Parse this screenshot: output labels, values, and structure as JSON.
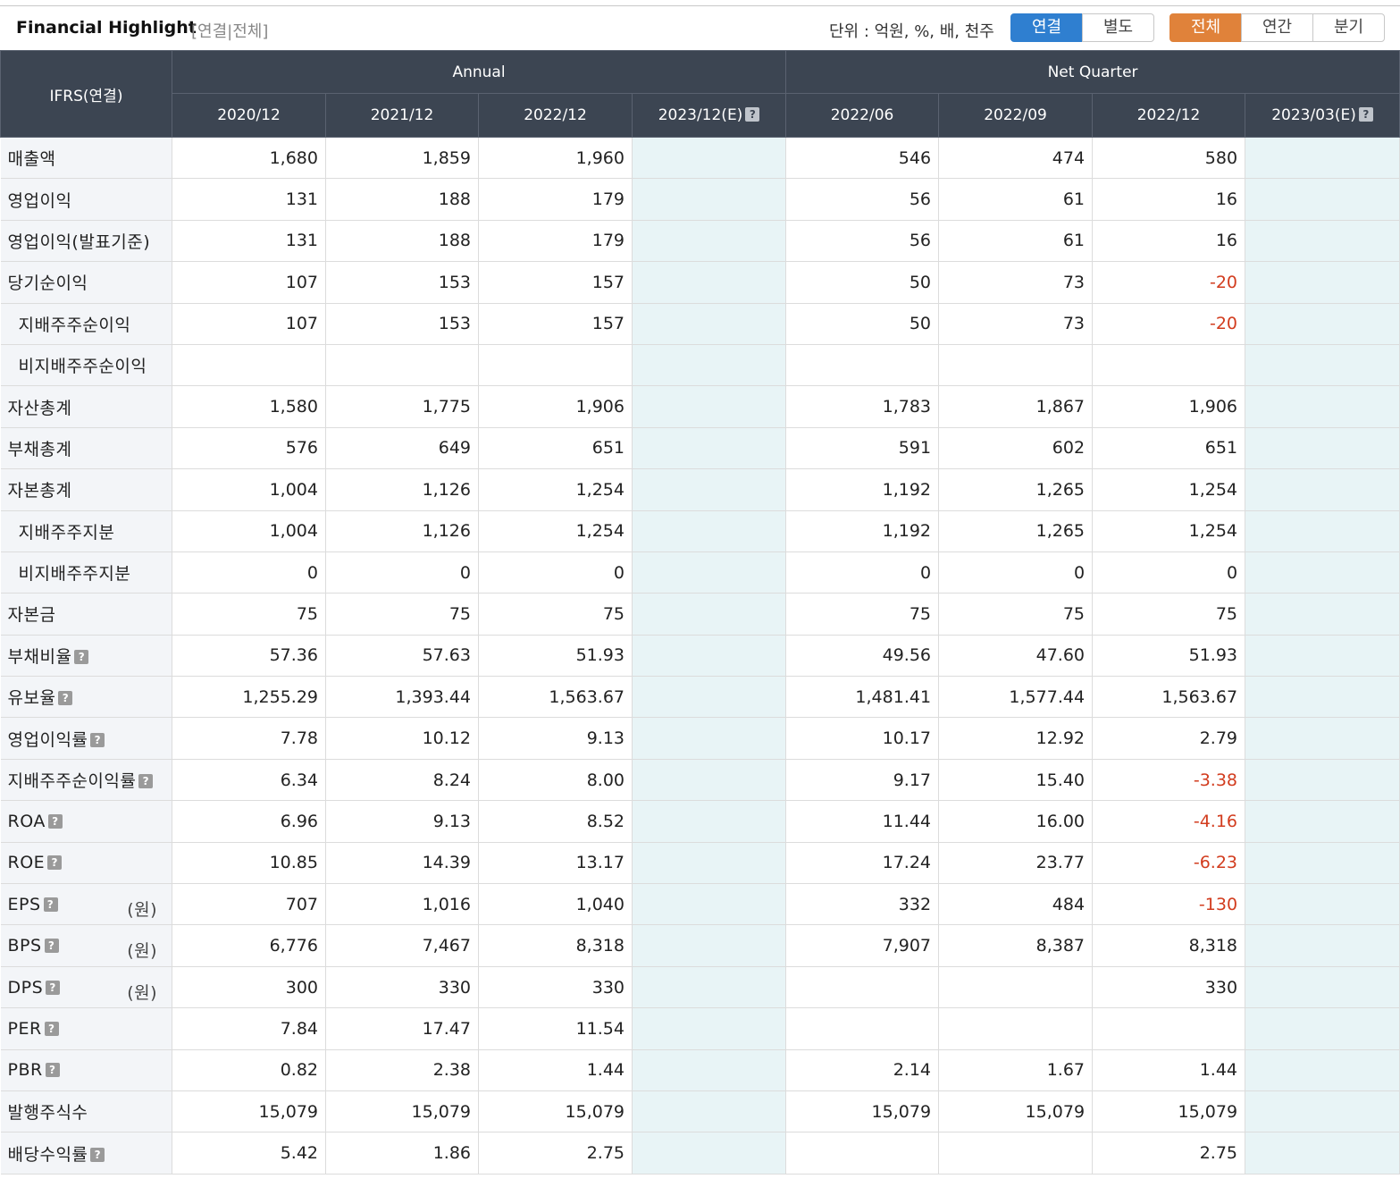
{
  "header": {
    "title": "Financial Highlight",
    "subtitle": "[연결|전체]",
    "unit": "단위 : 억원, %, 배, 천주",
    "basis_buttons": [
      "연결",
      "별도"
    ],
    "period_buttons": [
      "전체",
      "연간",
      "분기"
    ],
    "help_glyph": "?"
  },
  "colors": {
    "header_bg": "#3c4552",
    "blue": "#2f7fd0",
    "orange": "#e0823a",
    "negative": "#d23c1e",
    "estimate_bg": "#e8f4f6"
  },
  "table": {
    "corner": "IFRS(연결)",
    "group_annual": "Annual",
    "group_quarter": "Net Quarter",
    "columns": [
      "2020/12",
      "2021/12",
      "2022/12",
      "2023/12(E)",
      "2022/06",
      "2022/09",
      "2022/12",
      "2023/03(E)"
    ],
    "rows": [
      {
        "label": "매출액",
        "values": [
          "1,680",
          "1,859",
          "1,960",
          "",
          "546",
          "474",
          "580",
          ""
        ]
      },
      {
        "label": "영업이익",
        "values": [
          "131",
          "188",
          "179",
          "",
          "56",
          "61",
          "16",
          ""
        ]
      },
      {
        "label": "영업이익(발표기준)",
        "values": [
          "131",
          "188",
          "179",
          "",
          "56",
          "61",
          "16",
          ""
        ]
      },
      {
        "label": "당기순이익",
        "values": [
          "107",
          "153",
          "157",
          "",
          "50",
          "73",
          "-20",
          ""
        ]
      },
      {
        "label": "지배주주순이익",
        "indent": true,
        "values": [
          "107",
          "153",
          "157",
          "",
          "50",
          "73",
          "-20",
          ""
        ]
      },
      {
        "label": "비지배주주순이익",
        "indent": true,
        "values": [
          "",
          "",
          "",
          "",
          "",
          "",
          "",
          ""
        ]
      },
      {
        "label": "자산총계",
        "values": [
          "1,580",
          "1,775",
          "1,906",
          "",
          "1,783",
          "1,867",
          "1,906",
          ""
        ]
      },
      {
        "label": "부채총계",
        "values": [
          "576",
          "649",
          "651",
          "",
          "591",
          "602",
          "651",
          ""
        ]
      },
      {
        "label": "자본총계",
        "values": [
          "1,004",
          "1,126",
          "1,254",
          "",
          "1,192",
          "1,265",
          "1,254",
          ""
        ]
      },
      {
        "label": "지배주주지분",
        "indent": true,
        "values": [
          "1,004",
          "1,126",
          "1,254",
          "",
          "1,192",
          "1,265",
          "1,254",
          ""
        ]
      },
      {
        "label": "비지배주주지분",
        "indent": true,
        "values": [
          "0",
          "0",
          "0",
          "",
          "0",
          "0",
          "0",
          ""
        ]
      },
      {
        "label": "자본금",
        "values": [
          "75",
          "75",
          "75",
          "",
          "75",
          "75",
          "75",
          ""
        ]
      },
      {
        "label": "부채비율",
        "help": true,
        "values": [
          "57.36",
          "57.63",
          "51.93",
          "",
          "49.56",
          "47.60",
          "51.93",
          ""
        ]
      },
      {
        "label": "유보율",
        "help": true,
        "values": [
          "1,255.29",
          "1,393.44",
          "1,563.67",
          "",
          "1,481.41",
          "1,577.44",
          "1,563.67",
          ""
        ]
      },
      {
        "label": "영업이익률",
        "help": true,
        "values": [
          "7.78",
          "10.12",
          "9.13",
          "",
          "10.17",
          "12.92",
          "2.79",
          ""
        ]
      },
      {
        "label": "지배주주순이익률",
        "help": true,
        "values": [
          "6.34",
          "8.24",
          "8.00",
          "",
          "9.17",
          "15.40",
          "-3.38",
          ""
        ]
      },
      {
        "label": "ROA",
        "help": true,
        "values": [
          "6.96",
          "9.13",
          "8.52",
          "",
          "11.44",
          "16.00",
          "-4.16",
          ""
        ]
      },
      {
        "label": "ROE",
        "help": true,
        "values": [
          "10.85",
          "14.39",
          "13.17",
          "",
          "17.24",
          "23.77",
          "-6.23",
          ""
        ]
      },
      {
        "label": "EPS",
        "help": true,
        "unit": "(원)",
        "values": [
          "707",
          "1,016",
          "1,040",
          "",
          "332",
          "484",
          "-130",
          ""
        ]
      },
      {
        "label": "BPS",
        "help": true,
        "unit": "(원)",
        "values": [
          "6,776",
          "7,467",
          "8,318",
          "",
          "7,907",
          "8,387",
          "8,318",
          ""
        ]
      },
      {
        "label": "DPS",
        "help": true,
        "unit": "(원)",
        "values": [
          "300",
          "330",
          "330",
          "",
          "",
          "",
          "330",
          ""
        ]
      },
      {
        "label": "PER",
        "help": true,
        "values": [
          "7.84",
          "17.47",
          "11.54",
          "",
          "",
          "",
          "",
          ""
        ]
      },
      {
        "label": "PBR",
        "help": true,
        "values": [
          "0.82",
          "2.38",
          "1.44",
          "",
          "2.14",
          "1.67",
          "1.44",
          ""
        ]
      },
      {
        "label": "발행주식수",
        "values": [
          "15,079",
          "15,079",
          "15,079",
          "",
          "15,079",
          "15,079",
          "15,079",
          ""
        ]
      },
      {
        "label": "배당수익률",
        "help": true,
        "values": [
          "5.42",
          "1.86",
          "2.75",
          "",
          "",
          "",
          "2.75",
          ""
        ]
      }
    ]
  }
}
